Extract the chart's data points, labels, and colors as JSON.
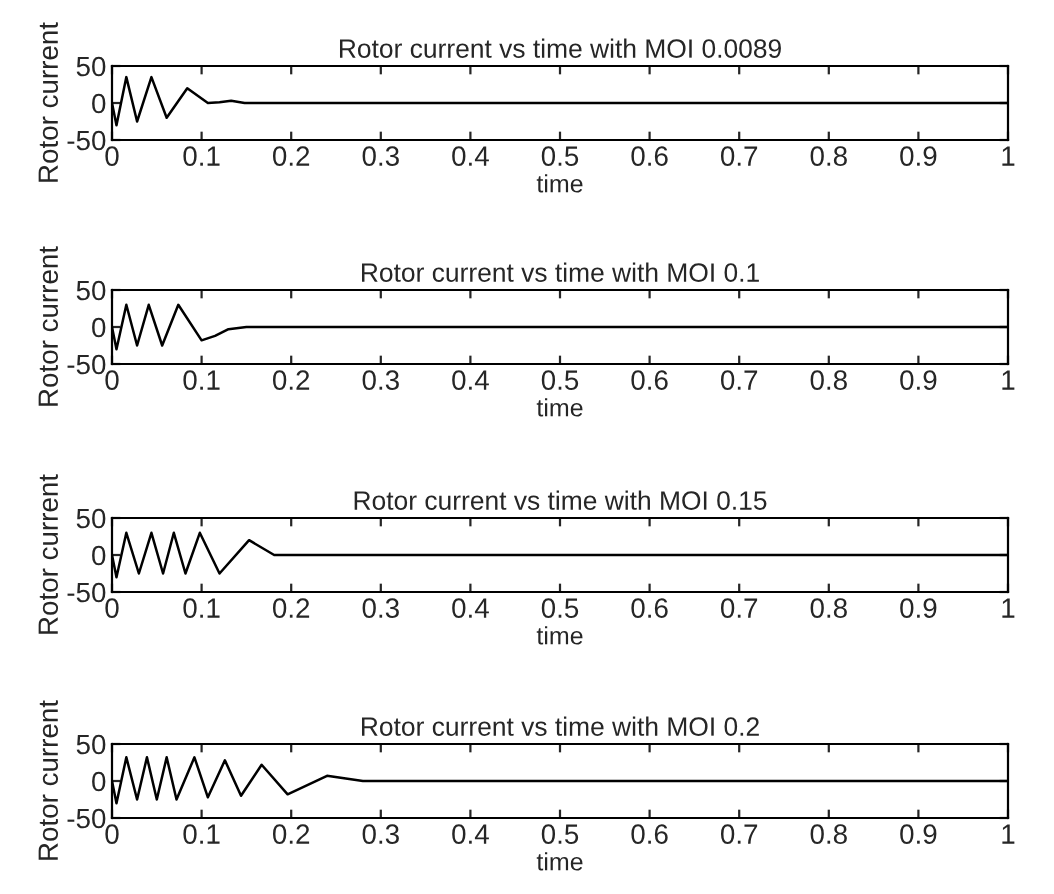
{
  "chart_data": [
    {
      "type": "line",
      "title": "Rotor current vs time with MOI 0.0089",
      "xlabel": "time",
      "ylabel": "Rotor current",
      "xlim": [
        0,
        1
      ],
      "ylim": [
        -50,
        50
      ],
      "xticks": [
        0,
        0.1,
        0.2,
        0.3,
        0.4,
        0.5,
        0.6,
        0.7,
        0.8,
        0.9,
        1
      ],
      "yticks": [
        -50,
        0,
        50
      ],
      "grid": false,
      "legend": false,
      "series": [
        {
          "color": "#000000",
          "x": [
            0,
            0.005,
            0.016,
            0.028,
            0.044,
            0.061,
            0.084,
            0.107,
            0.12,
            0.133,
            0.148,
            1
          ],
          "values": [
            0,
            -30,
            35,
            -25,
            35,
            -20,
            20,
            0,
            1,
            3,
            0,
            0
          ]
        }
      ]
    },
    {
      "type": "line",
      "title": "Rotor current vs time with MOI 0.1",
      "xlabel": "time",
      "ylabel": "Rotor current",
      "xlim": [
        0,
        1
      ],
      "ylim": [
        -50,
        50
      ],
      "xticks": [
        0,
        0.1,
        0.2,
        0.3,
        0.4,
        0.5,
        0.6,
        0.7,
        0.8,
        0.9,
        1
      ],
      "yticks": [
        -50,
        0,
        50
      ],
      "grid": false,
      "legend": false,
      "series": [
        {
          "color": "#000000",
          "x": [
            0,
            0.005,
            0.016,
            0.028,
            0.041,
            0.056,
            0.074,
            0.1,
            0.115,
            0.13,
            0.15,
            1
          ],
          "values": [
            0,
            -30,
            30,
            -25,
            30,
            -25,
            30,
            -18,
            -12,
            -3,
            0,
            0
          ]
        }
      ]
    },
    {
      "type": "line",
      "title": "Rotor current vs time with MOI 0.15",
      "xlabel": "time",
      "ylabel": "Rotor current",
      "xlim": [
        0,
        1
      ],
      "ylim": [
        -50,
        50
      ],
      "xticks": [
        0,
        0.1,
        0.2,
        0.3,
        0.4,
        0.5,
        0.6,
        0.7,
        0.8,
        0.9,
        1
      ],
      "yticks": [
        -50,
        0,
        50
      ],
      "grid": false,
      "legend": false,
      "series": [
        {
          "color": "#000000",
          "x": [
            0,
            0.005,
            0.016,
            0.03,
            0.044,
            0.057,
            0.069,
            0.082,
            0.098,
            0.12,
            0.153,
            0.181,
            1
          ],
          "values": [
            0,
            -30,
            30,
            -25,
            30,
            -25,
            30,
            -25,
            30,
            -25,
            20,
            0,
            0
          ]
        }
      ]
    },
    {
      "type": "line",
      "title": "Rotor current vs time with MOI 0.2",
      "xlabel": "time",
      "ylabel": "Rotor current",
      "xlim": [
        0,
        1
      ],
      "ylim": [
        -50,
        50
      ],
      "xticks": [
        0,
        0.1,
        0.2,
        0.3,
        0.4,
        0.5,
        0.6,
        0.7,
        0.8,
        0.9,
        1
      ],
      "yticks": [
        -50,
        0,
        50
      ],
      "grid": false,
      "legend": false,
      "series": [
        {
          "color": "#000000",
          "x": [
            0,
            0.005,
            0.016,
            0.028,
            0.039,
            0.05,
            0.061,
            0.072,
            0.092,
            0.107,
            0.126,
            0.144,
            0.167,
            0.196,
            0.24,
            0.28,
            1
          ],
          "values": [
            0,
            -30,
            32,
            -25,
            32,
            -25,
            32,
            -25,
            32,
            -22,
            28,
            -20,
            22,
            -18,
            7,
            0,
            0
          ]
        }
      ]
    }
  ]
}
